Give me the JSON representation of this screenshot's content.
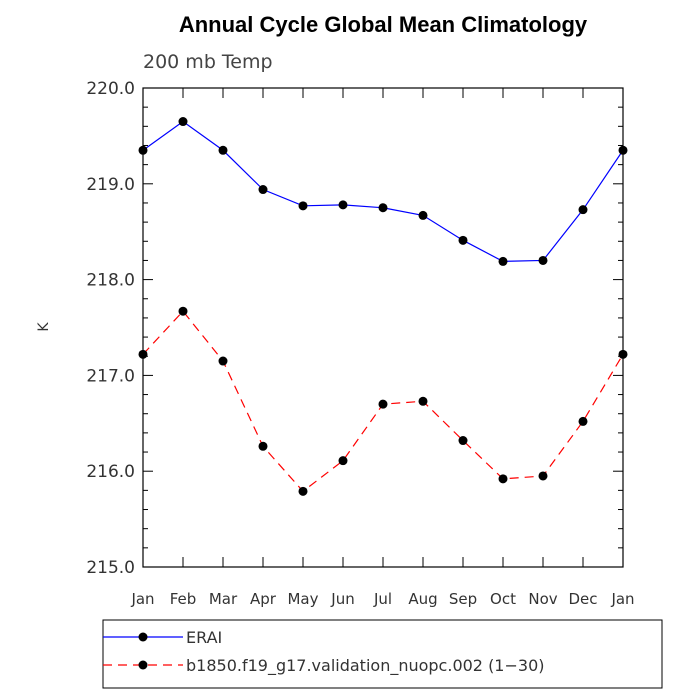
{
  "chart_data": {
    "type": "line",
    "title": "Annual Cycle Global Mean Climatology",
    "subtitle": "200 mb Temp",
    "xlabel": "",
    "ylabel": "K",
    "categories": [
      "Jan",
      "Feb",
      "Mar",
      "Apr",
      "May",
      "Jun",
      "Jul",
      "Aug",
      "Sep",
      "Oct",
      "Nov",
      "Dec",
      "Jan"
    ],
    "ylim": [
      215.0,
      220.0
    ],
    "yticks": [
      "215.0",
      "216.0",
      "217.0",
      "218.0",
      "219.0",
      "220.0"
    ],
    "grid": false,
    "legend_position": "bottom",
    "series": [
      {
        "name": "ERAI",
        "color": "#0000ff",
        "line_style": "solid",
        "marker": "filled-circle",
        "values": [
          219.35,
          219.65,
          219.35,
          218.94,
          218.77,
          218.78,
          218.75,
          218.67,
          218.41,
          218.19,
          218.2,
          218.73,
          219.35
        ]
      },
      {
        "name": "b1850.f19_g17.validation_nuopc.002 (1−30)",
        "color": "#ff0000",
        "line_style": "dashed",
        "marker": "filled-circle",
        "values": [
          217.22,
          217.67,
          217.15,
          216.26,
          215.79,
          216.11,
          216.7,
          216.73,
          216.32,
          215.92,
          215.95,
          216.52,
          217.22
        ]
      }
    ]
  }
}
